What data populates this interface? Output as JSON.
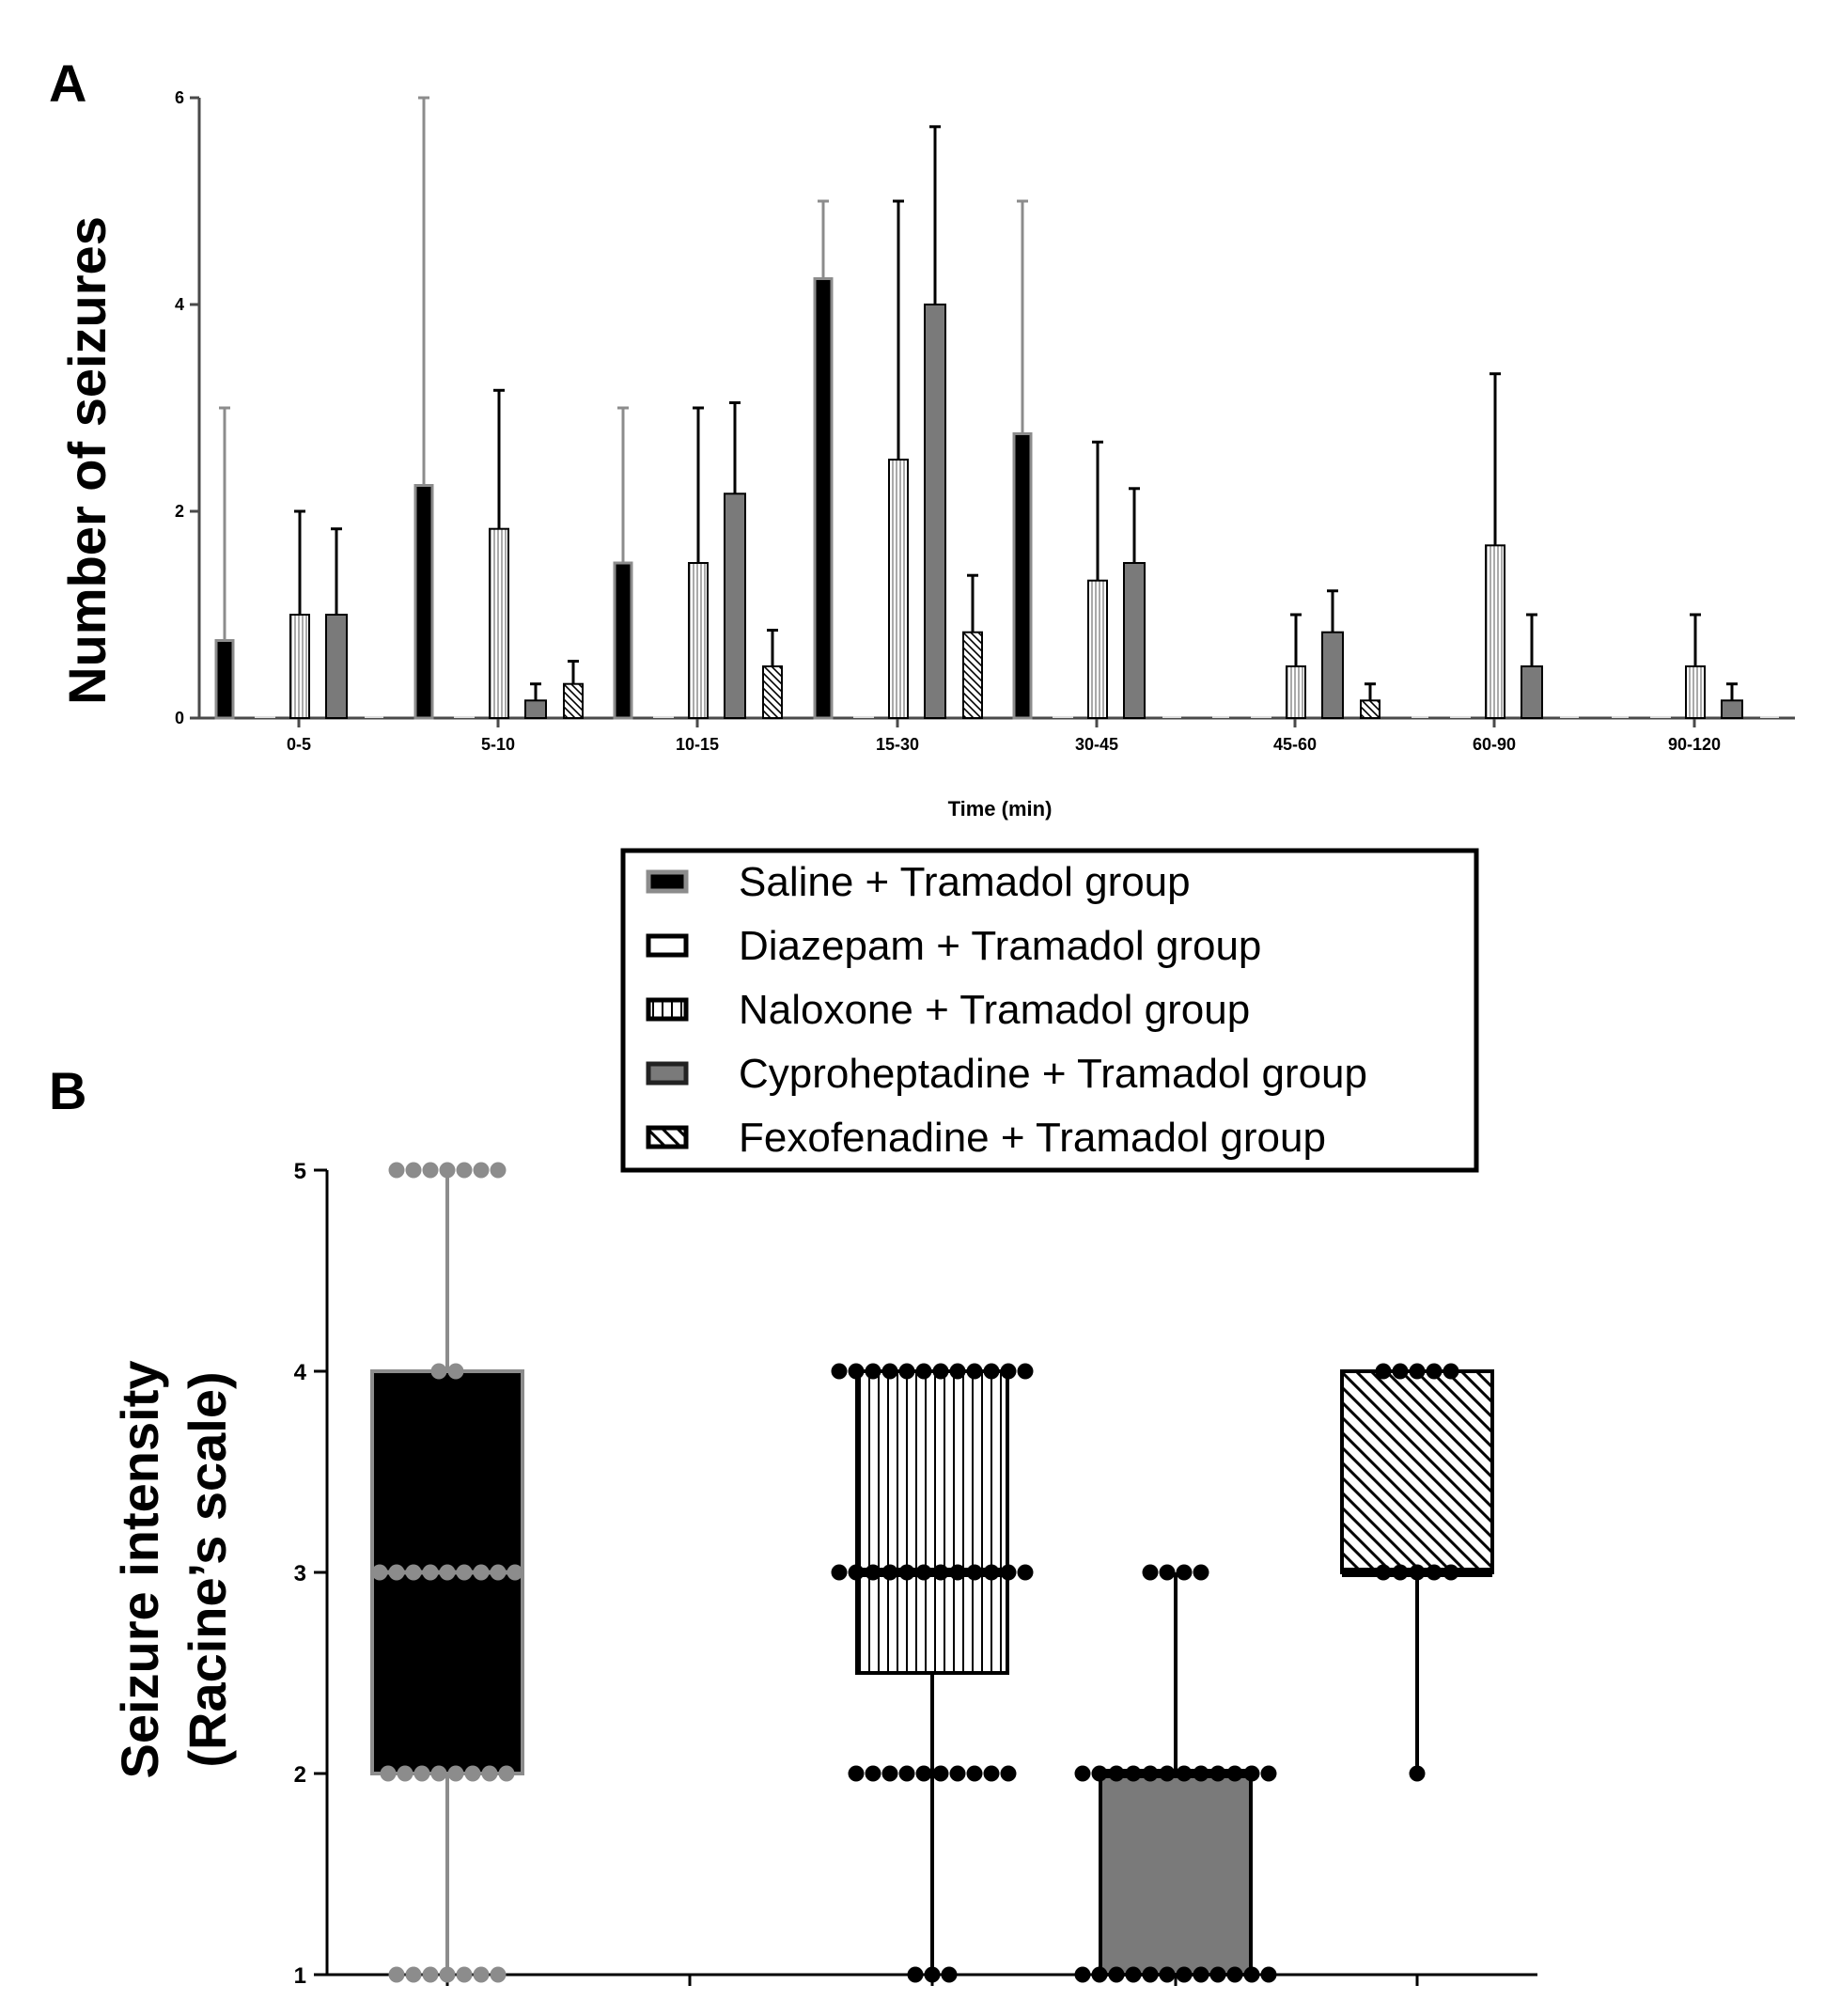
{
  "chart_data": [
    {
      "type": "bar",
      "panel": "A",
      "ylabel": "Number of seizures",
      "xlabel": "Time (min)",
      "ylim": [
        0,
        6
      ],
      "yticks": [
        0,
        2,
        4,
        6
      ],
      "categories": [
        "0-5",
        "5-10",
        "10-15",
        "15-30",
        "30-45",
        "45-60",
        "60-90",
        "90-120"
      ],
      "series": [
        {
          "name": "Saline + Tramadol group",
          "key": "saline",
          "values": [
            0.75,
            2.25,
            1.5,
            4.25,
            2.75,
            0,
            0,
            0
          ],
          "err_top": [
            3,
            6,
            3,
            5,
            5,
            null,
            null,
            null
          ]
        },
        {
          "name": "Diazepam + Tramadol group",
          "key": "diazepam",
          "values": [
            0,
            0,
            0,
            0,
            0,
            0,
            0,
            0
          ],
          "err_top": [
            null,
            null,
            null,
            null,
            null,
            null,
            null,
            null
          ]
        },
        {
          "name": "Naloxone + Tramadol group",
          "key": "naloxone",
          "values": [
            1,
            1.83,
            1.5,
            2.5,
            1.33,
            0.5,
            1.67,
            0.5
          ],
          "err_top": [
            2,
            3.17,
            3,
            5,
            2.67,
            1,
            3.33,
            1
          ]
        },
        {
          "name": "Cyproheptadine + Tramadol group",
          "key": "cypro",
          "values": [
            1,
            0.17,
            2.17,
            4,
            1.5,
            0.83,
            0.5,
            0.17
          ],
          "err_top": [
            1.83,
            0.33,
            3.05,
            5.72,
            2.22,
            1.23,
            1,
            0.33
          ]
        },
        {
          "name": "Fexofenadine + Tramadol group",
          "key": "fexo",
          "values": [
            0,
            0.33,
            0.5,
            0.83,
            0,
            0.17,
            0,
            0
          ],
          "err_top": [
            null,
            0.55,
            0.85,
            1.38,
            null,
            0.33,
            null,
            null
          ]
        }
      ]
    },
    {
      "type": "box",
      "panel": "B",
      "ylabel_line1": "Seizure intensity",
      "ylabel_line2": "(Racine’s scale)",
      "ylim": [
        1,
        5
      ],
      "yticks": [
        "1",
        "2",
        "3",
        "4",
        "5"
      ],
      "groups": [
        {
          "name": "Saline + Tramadol group",
          "key": "saline",
          "min": 1,
          "q1": 2,
          "median": 3,
          "q3": 4,
          "max": 5,
          "points": [
            {
              "y": 5,
              "n": 7
            },
            {
              "y": 4,
              "n": 2
            },
            {
              "y": 3,
              "n": 9
            },
            {
              "y": 2,
              "n": 8
            },
            {
              "y": 1,
              "n": 7
            }
          ]
        },
        {
          "name": "Diazepam + Tramadol group",
          "key": "diazepam",
          "empty": true
        },
        {
          "name": "Naloxone + Tramadol group",
          "key": "naloxone",
          "min": 1,
          "q1": 2.5,
          "median": 3,
          "q3": 4,
          "max": 4,
          "points": [
            {
              "y": 4,
              "n": 12
            },
            {
              "y": 3,
              "n": 12
            },
            {
              "y": 2,
              "n": 10
            },
            {
              "y": 1,
              "n": 3
            }
          ]
        },
        {
          "name": "Cyproheptadine + Tramadol group",
          "key": "cypro",
          "min": 1,
          "q1": 1,
          "median": 2,
          "q3": 2,
          "max": 3,
          "points": [
            {
              "y": 3,
              "n": 4
            },
            {
              "y": 2,
              "n": 12
            },
            {
              "y": 1,
              "n": 12
            }
          ]
        },
        {
          "name": "Fexofenadine + Tramadol group",
          "key": "fexo",
          "min": 2,
          "q1": 3,
          "median": 3,
          "q3": 4,
          "max": 4,
          "points": [
            {
              "y": 4,
              "n": 5
            },
            {
              "y": 3,
              "n": 5
            },
            {
              "y": 2,
              "n": 1
            }
          ]
        }
      ]
    }
  ],
  "legend": {
    "items": [
      {
        "key": "saline",
        "label": "Saline + Tramadol group"
      },
      {
        "key": "diazepam",
        "label": "Diazepam + Tramadol group"
      },
      {
        "key": "naloxone",
        "label": "Naloxone + Tramadol group"
      },
      {
        "key": "cypro",
        "label": "Cyproheptadine + Tramadol group"
      },
      {
        "key": "fexo",
        "label": "Fexofenadine + Tramadol group"
      }
    ]
  },
  "panel_labels": {
    "a": "A",
    "b": "B"
  },
  "colors": {
    "saline": "#000000",
    "cypro": "#7a7a7a",
    "grey": "#8c8c8c",
    "axis": "#4a4a4a"
  }
}
